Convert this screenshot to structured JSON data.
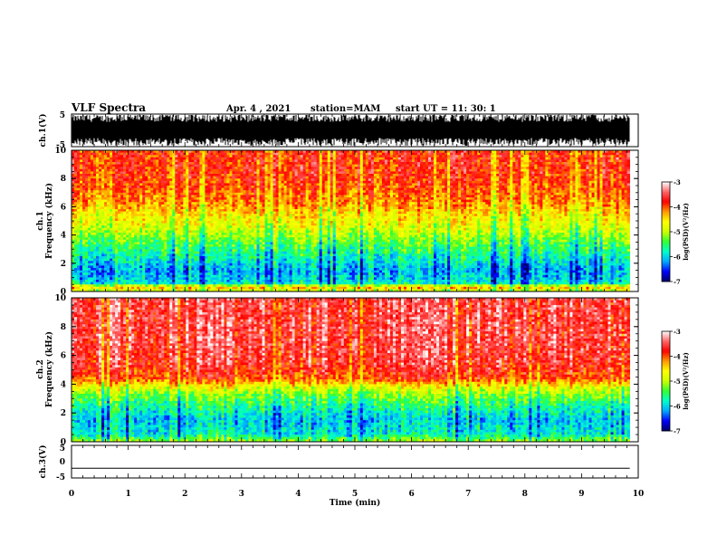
{
  "header": {
    "title": "VLF Spectra",
    "date": "Apr. 4 , 2021",
    "station": "station=MAM",
    "start": "start  UT =   11: 30: 1"
  },
  "chart_data": [
    {
      "type": "line",
      "panel": "ch1-waveform",
      "ylabel": "ch.1(V)",
      "ylim": [
        -5,
        5
      ],
      "yticks": [
        5,
        -5
      ],
      "x": [
        0,
        9.85
      ],
      "description_of_series": "dense broadband waveform between -5 and 5 V"
    },
    {
      "type": "heatmap",
      "panel": "ch1-spectrogram",
      "ylabel": [
        "ch.1",
        "Frequency  (kHz)"
      ],
      "ylim": [
        0,
        10
      ],
      "yticks": [
        0,
        2,
        4,
        6,
        8,
        10
      ],
      "xlim": [
        0,
        9.85
      ],
      "colorbar": {
        "label": "log(PSD)(V²/Hz)",
        "ticks": [
          -3,
          -4,
          -5,
          -6,
          -7
        ],
        "range": [
          -7,
          -3
        ]
      },
      "frequency_profile": [
        {
          "f": 0.0,
          "v": -5.0
        },
        {
          "f": 0.3,
          "v": -4.3
        },
        {
          "f": 0.6,
          "v": -5.9
        },
        {
          "f": 1.5,
          "v": -6.1
        },
        {
          "f": 2.5,
          "v": -5.7
        },
        {
          "f": 3.5,
          "v": -5.3
        },
        {
          "f": 4.5,
          "v": -4.8
        },
        {
          "f": 5.5,
          "v": -4.5
        },
        {
          "f": 6.5,
          "v": -4.1
        },
        {
          "f": 7.5,
          "v": -3.9
        },
        {
          "f": 8.5,
          "v": -3.8
        },
        {
          "f": 10.0,
          "v": -3.8
        }
      ]
    },
    {
      "type": "heatmap",
      "panel": "ch2-spectrogram",
      "ylabel": [
        "ch.2",
        "Frequency  (kHz)"
      ],
      "ylim": [
        0,
        10
      ],
      "yticks": [
        0,
        2,
        4,
        6,
        8,
        10
      ],
      "xlim": [
        0,
        9.85
      ],
      "colorbar": {
        "label": "log(PSD)(V²/Hz)",
        "ticks": [
          -3,
          -4,
          -5,
          -6,
          -7
        ],
        "range": [
          -7,
          -3
        ]
      },
      "frequency_profile": [
        {
          "f": 0.0,
          "v": -5.0
        },
        {
          "f": 0.5,
          "v": -5.8
        },
        {
          "f": 1.5,
          "v": -6.0
        },
        {
          "f": 2.5,
          "v": -5.6
        },
        {
          "f": 3.2,
          "v": -5.2
        },
        {
          "f": 3.8,
          "v": -4.7
        },
        {
          "f": 4.4,
          "v": -3.9
        },
        {
          "f": 5.5,
          "v": -3.6
        },
        {
          "f": 7.0,
          "v": -3.5
        },
        {
          "f": 10.0,
          "v": -3.5
        }
      ]
    },
    {
      "type": "line",
      "panel": "ch3-waveform",
      "ylabel": "ch.3(V)",
      "ylim": [
        -5,
        5
      ],
      "yticks": [
        5,
        0,
        -5
      ],
      "x": [
        0,
        9.85
      ],
      "y": [
        -2,
        -2
      ]
    }
  ],
  "xaxis": {
    "label": "Time  (min)",
    "ticks": [
      0,
      1,
      2,
      3,
      4,
      5,
      6,
      7,
      8,
      9,
      10
    ],
    "range": [
      0,
      10
    ]
  },
  "colors": {
    "colormap": [
      "#000066",
      "#0000ff",
      "#00aaff",
      "#00ffcc",
      "#33ff33",
      "#ccff00",
      "#ffff00",
      "#ff9900",
      "#ff0000",
      "#ff6666",
      "#ffffff"
    ]
  }
}
